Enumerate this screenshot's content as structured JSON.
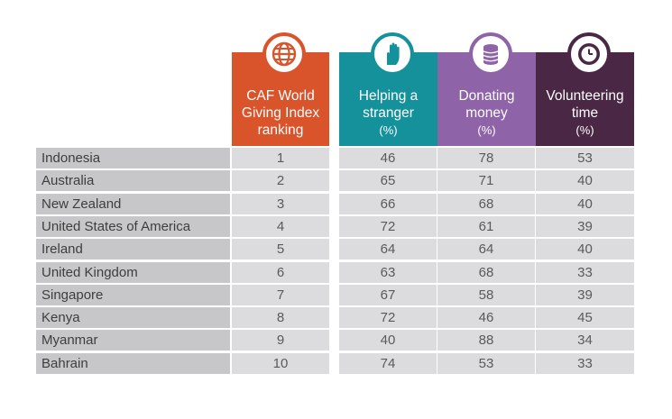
{
  "headers": {
    "caf": {
      "lines": [
        "CAF World",
        "Giving Index",
        "ranking"
      ],
      "color": "#d9532b",
      "icon": "globe-icon"
    },
    "helping": {
      "lines": [
        "Helping a",
        "stranger"
      ],
      "unit": "(%)",
      "color": "#14919b",
      "icon": "raised-hand-icon"
    },
    "donating": {
      "lines": [
        "Donating",
        "money"
      ],
      "unit": "(%)",
      "color": "#8e63a8",
      "icon": "coin-stack-icon"
    },
    "volunteering": {
      "lines": [
        "Volunteering",
        "time"
      ],
      "unit": "(%)",
      "color": "#4a2744",
      "icon": "clock-icon"
    }
  },
  "rows": [
    {
      "country": "Indonesia",
      "rank": "1",
      "helping": "46",
      "donating": "78",
      "volunteering": "53"
    },
    {
      "country": "Australia",
      "rank": "2",
      "helping": "65",
      "donating": "71",
      "volunteering": "40"
    },
    {
      "country": "New Zealand",
      "rank": "3",
      "helping": "66",
      "donating": "68",
      "volunteering": "40"
    },
    {
      "country": "United States of America",
      "rank": "4",
      "helping": "72",
      "donating": "61",
      "volunteering": "39"
    },
    {
      "country": "Ireland",
      "rank": "5",
      "helping": "64",
      "donating": "64",
      "volunteering": "40"
    },
    {
      "country": "United Kingdom",
      "rank": "6",
      "helping": "63",
      "donating": "68",
      "volunteering": "33"
    },
    {
      "country": "Singapore",
      "rank": "7",
      "helping": "67",
      "donating": "58",
      "volunteering": "39"
    },
    {
      "country": "Kenya",
      "rank": "8",
      "helping": "72",
      "donating": "46",
      "volunteering": "45"
    },
    {
      "country": "Myanmar",
      "rank": "9",
      "helping": "40",
      "donating": "88",
      "volunteering": "34"
    },
    {
      "country": "Bahrain",
      "rank": "10",
      "helping": "74",
      "donating": "53",
      "volunteering": "33"
    }
  ],
  "colors": {
    "row_shade_dark": "#c7c7c9",
    "row_shade_light": "#dcdcde"
  }
}
